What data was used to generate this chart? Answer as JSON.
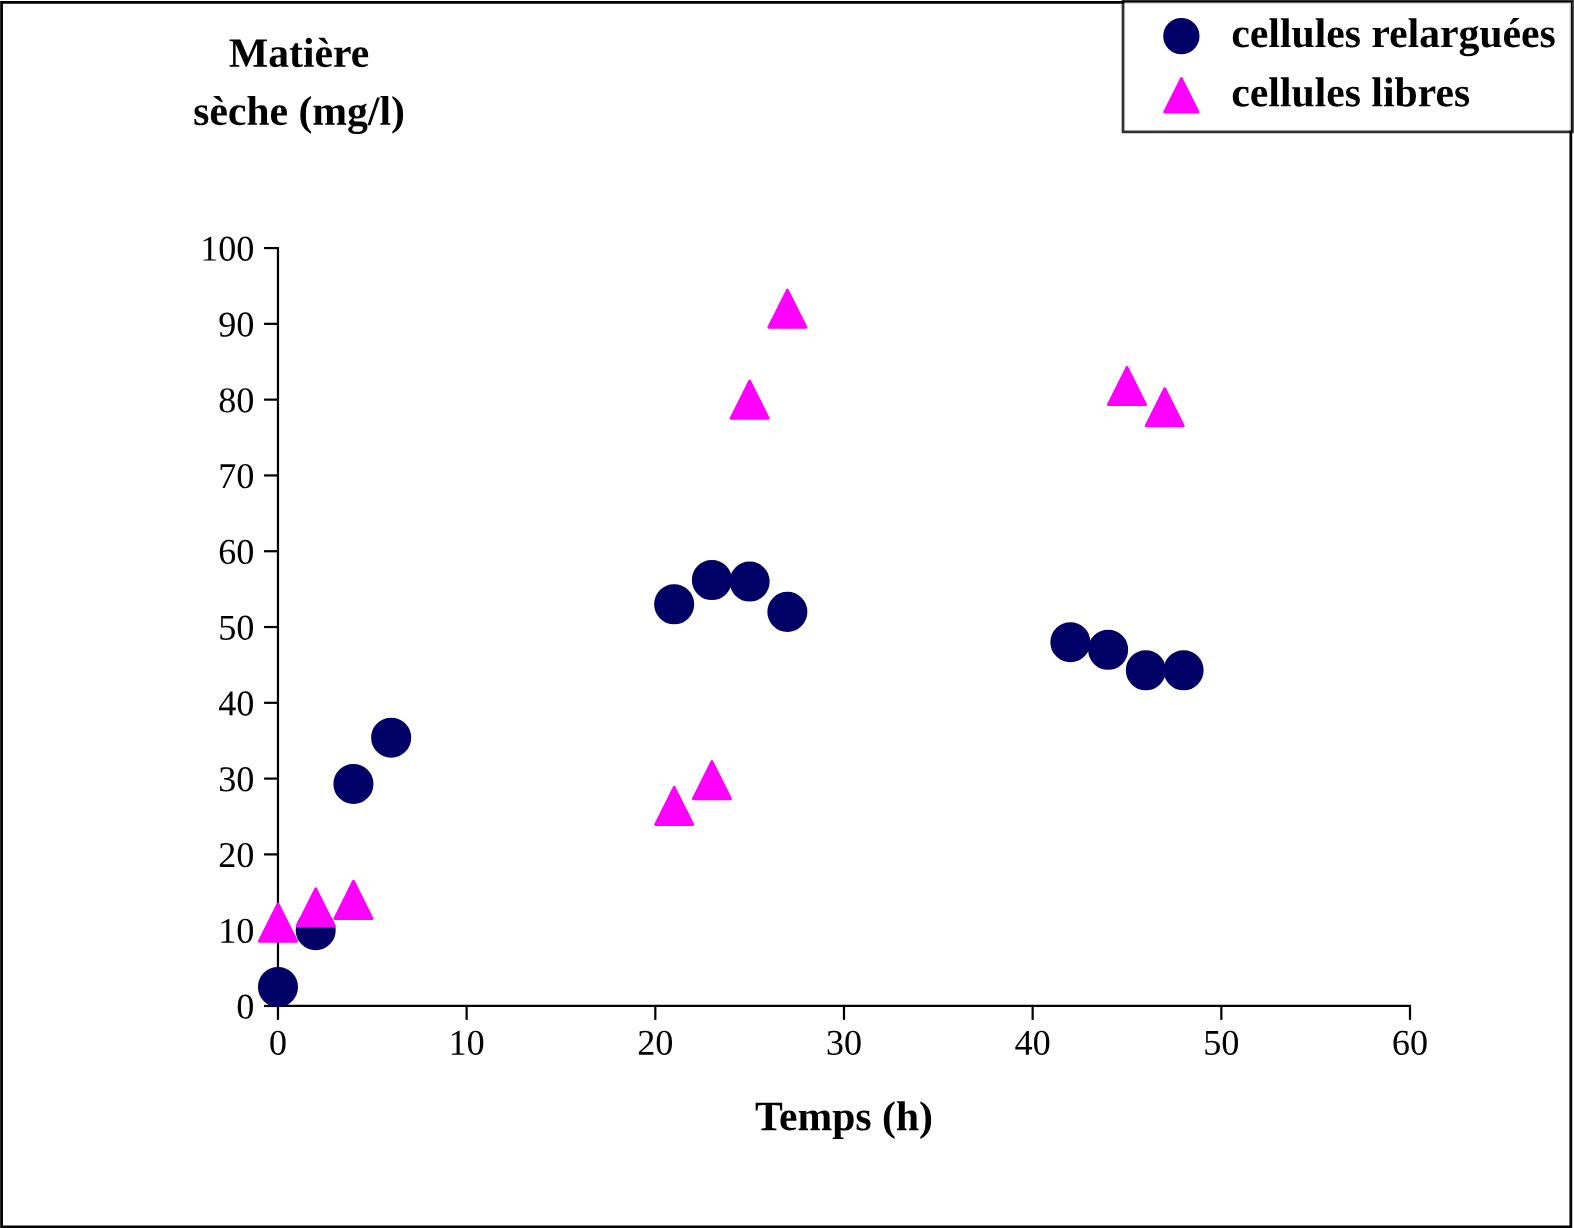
{
  "chart_data": {
    "type": "scatter",
    "xlabel": "Temps (h)",
    "ylabel": "Matière\nsèche (mg/l)",
    "series": [
      {
        "name": "cellules relarguées",
        "color": "#000066",
        "marker": "circle",
        "x": [
          0,
          2,
          4,
          6,
          21,
          23,
          25,
          27,
          42,
          44,
          46,
          48
        ],
        "values": [
          2.5,
          10,
          29.3,
          35.4,
          53,
          56.2,
          56,
          52,
          48,
          47,
          44.3,
          44.3
        ]
      },
      {
        "name": "cellules libres",
        "color": "#ff00ff",
        "marker": "triangle",
        "x": [
          0,
          2,
          4,
          21,
          23,
          25,
          27,
          45,
          47
        ],
        "values": [
          11,
          13,
          14,
          26.4,
          29.8,
          80,
          92,
          81.8,
          79
        ]
      }
    ],
    "xlim": [
      0,
      60
    ],
    "xticks": [
      0,
      10,
      20,
      30,
      40,
      50,
      60
    ],
    "ylim": [
      0,
      100
    ],
    "yticks": [
      0,
      10,
      20,
      30,
      40,
      50,
      60,
      70,
      80,
      90,
      100
    ],
    "grid": false,
    "legend": "top right"
  }
}
